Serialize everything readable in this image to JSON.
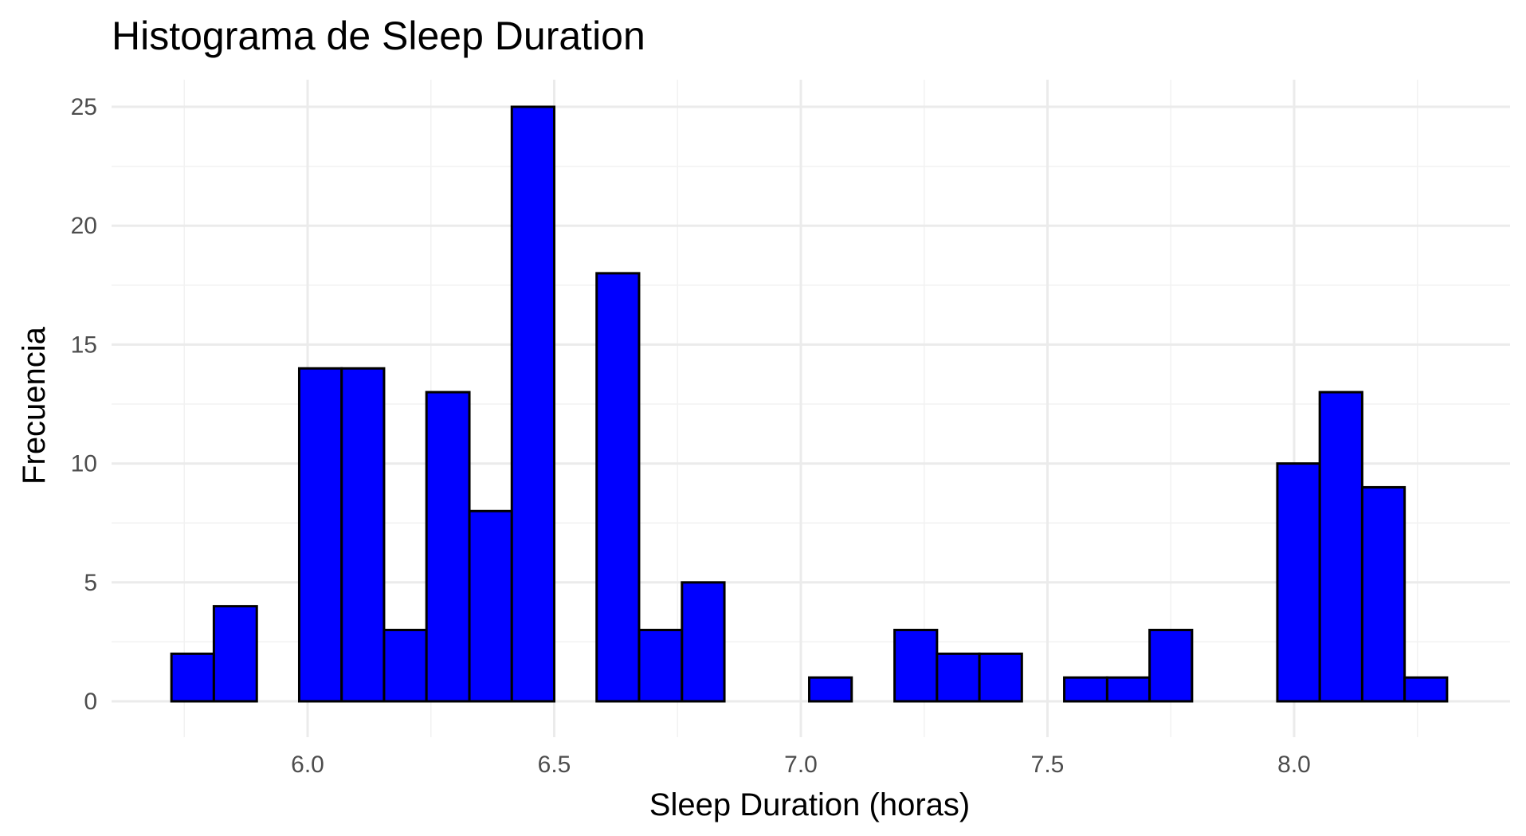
{
  "chart_data": {
    "type": "bar",
    "title": "Histograma de Sleep Duration",
    "xlabel": "Sleep Duration (horas)",
    "ylabel": "Frecuencia",
    "bar_color": "#0000ff",
    "bar_border_color": "#000000",
    "grid": true,
    "legend": "none",
    "xlim": [
      5.72,
      8.32
    ],
    "ylim": [
      0,
      25
    ],
    "bin_width": 0.0862,
    "x_ticks": [
      6.0,
      6.5,
      7.0,
      7.5,
      8.0
    ],
    "x_tick_labels": [
      "6.0",
      "6.5",
      "7.0",
      "7.5",
      "8.0"
    ],
    "y_ticks": [
      0,
      5,
      10,
      15,
      20,
      25
    ],
    "y_tick_labels": [
      "0",
      "5",
      "10",
      "15",
      "20",
      "25"
    ],
    "bins": [
      {
        "x_start": 5.724,
        "x_end": 5.81,
        "count": 2
      },
      {
        "x_start": 5.81,
        "x_end": 5.897,
        "count": 4
      },
      {
        "x_start": 5.897,
        "x_end": 5.983,
        "count": 0
      },
      {
        "x_start": 5.983,
        "x_end": 6.069,
        "count": 14
      },
      {
        "x_start": 6.069,
        "x_end": 6.155,
        "count": 14
      },
      {
        "x_start": 6.155,
        "x_end": 6.241,
        "count": 3
      },
      {
        "x_start": 6.241,
        "x_end": 6.328,
        "count": 13
      },
      {
        "x_start": 6.328,
        "x_end": 6.414,
        "count": 8
      },
      {
        "x_start": 6.414,
        "x_end": 6.5,
        "count": 25
      },
      {
        "x_start": 6.5,
        "x_end": 6.586,
        "count": 0
      },
      {
        "x_start": 6.586,
        "x_end": 6.672,
        "count": 18
      },
      {
        "x_start": 6.672,
        "x_end": 6.759,
        "count": 3
      },
      {
        "x_start": 6.759,
        "x_end": 6.845,
        "count": 5
      },
      {
        "x_start": 6.845,
        "x_end": 6.931,
        "count": 0
      },
      {
        "x_start": 6.931,
        "x_end": 7.017,
        "count": 0
      },
      {
        "x_start": 7.017,
        "x_end": 7.103,
        "count": 1
      },
      {
        "x_start": 7.103,
        "x_end": 7.19,
        "count": 0
      },
      {
        "x_start": 7.19,
        "x_end": 7.276,
        "count": 3
      },
      {
        "x_start": 7.276,
        "x_end": 7.362,
        "count": 2
      },
      {
        "x_start": 7.362,
        "x_end": 7.448,
        "count": 2
      },
      {
        "x_start": 7.448,
        "x_end": 7.534,
        "count": 0
      },
      {
        "x_start": 7.534,
        "x_end": 7.621,
        "count": 1
      },
      {
        "x_start": 7.621,
        "x_end": 7.707,
        "count": 1
      },
      {
        "x_start": 7.707,
        "x_end": 7.793,
        "count": 3
      },
      {
        "x_start": 7.793,
        "x_end": 7.879,
        "count": 0
      },
      {
        "x_start": 7.879,
        "x_end": 7.966,
        "count": 0
      },
      {
        "x_start": 7.966,
        "x_end": 8.052,
        "count": 10
      },
      {
        "x_start": 8.052,
        "x_end": 8.138,
        "count": 13
      },
      {
        "x_start": 8.138,
        "x_end": 8.224,
        "count": 9
      },
      {
        "x_start": 8.224,
        "x_end": 8.31,
        "count": 1
      }
    ]
  }
}
